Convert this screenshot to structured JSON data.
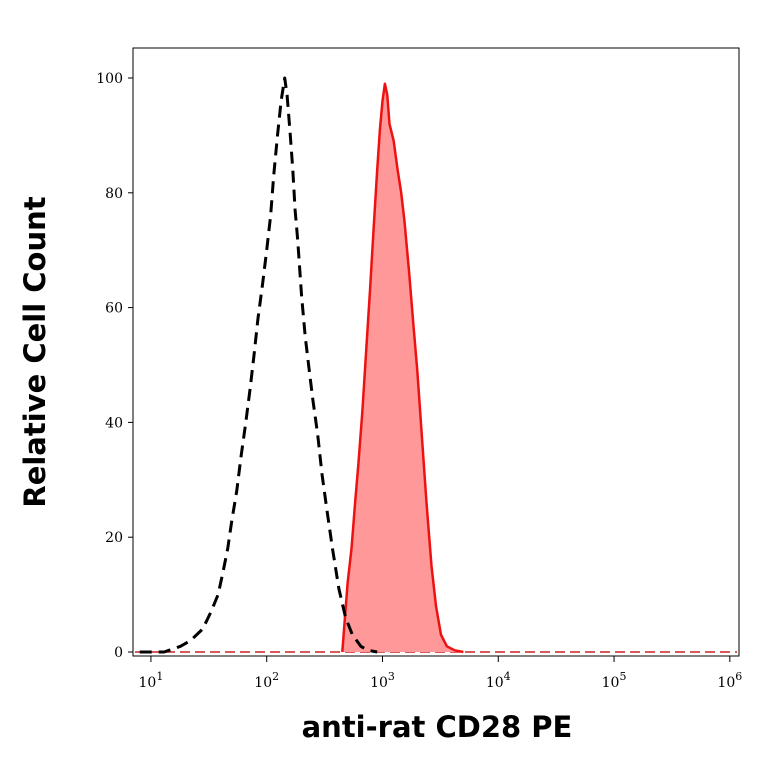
{
  "chart_data": {
    "type": "area",
    "xlabel": "anti-rat CD28 PE",
    "ylabel": "Relative Cell Count",
    "x_scale": "log",
    "xlim": [
      7,
      1200000
    ],
    "ylim": [
      0,
      105
    ],
    "x_ticks": [
      10,
      100,
      1000,
      10000,
      100000,
      1000000
    ],
    "x_tick_labels": [
      {
        "base": "10",
        "exp": "1"
      },
      {
        "base": "10",
        "exp": "2"
      },
      {
        "base": "10",
        "exp": "3"
      },
      {
        "base": "10",
        "exp": "4"
      },
      {
        "base": "10",
        "exp": "5"
      },
      {
        "base": "10",
        "exp": "6"
      }
    ],
    "y_ticks": [
      0,
      20,
      40,
      60,
      80,
      100
    ],
    "y_tick_labels": [
      "0",
      "20",
      "40",
      "60",
      "80",
      "100"
    ],
    "grid": false,
    "series": [
      {
        "style": "dashed",
        "color": "#000000",
        "fill": "none",
        "points": [
          [
            8,
            0
          ],
          [
            13,
            0
          ],
          [
            18,
            1
          ],
          [
            22,
            2
          ],
          [
            28,
            4
          ],
          [
            33,
            7
          ],
          [
            38,
            10
          ],
          [
            42,
            14
          ],
          [
            46,
            18
          ],
          [
            50,
            23
          ],
          [
            55,
            28
          ],
          [
            60,
            34
          ],
          [
            66,
            40
          ],
          [
            72,
            46
          ],
          [
            78,
            52
          ],
          [
            84,
            58
          ],
          [
            92,
            64
          ],
          [
            100,
            70
          ],
          [
            108,
            76
          ],
          [
            115,
            83
          ],
          [
            124,
            90
          ],
          [
            133,
            96
          ],
          [
            143,
            100
          ],
          [
            150,
            97
          ],
          [
            160,
            90
          ],
          [
            168,
            84
          ],
          [
            176,
            77
          ],
          [
            185,
            72
          ],
          [
            200,
            62
          ],
          [
            215,
            55
          ],
          [
            230,
            50
          ],
          [
            250,
            44
          ],
          [
            275,
            38
          ],
          [
            300,
            31
          ],
          [
            330,
            25
          ],
          [
            370,
            18
          ],
          [
            420,
            11
          ],
          [
            480,
            6
          ],
          [
            550,
            3
          ],
          [
            650,
            1
          ],
          [
            750,
            0.3
          ],
          [
            900,
            0
          ]
        ]
      },
      {
        "style": "solid",
        "color": "#ee1111",
        "fill": "#ff9999",
        "points": [
          [
            450,
            0
          ],
          [
            470,
            5
          ],
          [
            500,
            12
          ],
          [
            540,
            18
          ],
          [
            580,
            26
          ],
          [
            620,
            33
          ],
          [
            670,
            42
          ],
          [
            720,
            52
          ],
          [
            780,
            63
          ],
          [
            840,
            74
          ],
          [
            900,
            84
          ],
          [
            950,
            91
          ],
          [
            1000,
            96
          ],
          [
            1050,
            99
          ],
          [
            1100,
            97
          ],
          [
            1150,
            92
          ],
          [
            1250,
            89
          ],
          [
            1350,
            84
          ],
          [
            1450,
            80
          ],
          [
            1550,
            75
          ],
          [
            1700,
            66
          ],
          [
            1850,
            57
          ],
          [
            2000,
            49
          ],
          [
            2200,
            37
          ],
          [
            2400,
            26
          ],
          [
            2650,
            15
          ],
          [
            2900,
            8
          ],
          [
            3200,
            3
          ],
          [
            3600,
            1
          ],
          [
            4200,
            0.3
          ],
          [
            5000,
            0
          ]
        ]
      }
    ]
  }
}
